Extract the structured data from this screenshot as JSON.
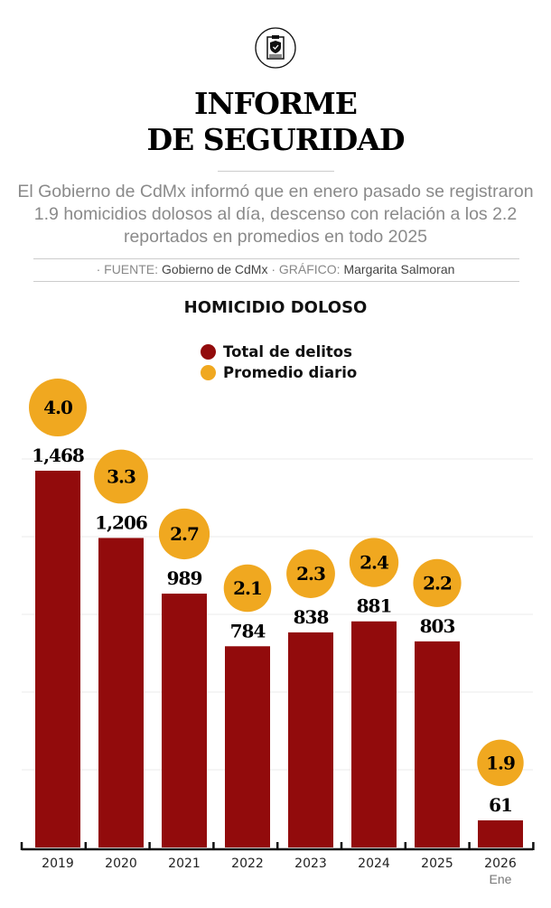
{
  "header": {
    "icon": "clipboard-shield-icon",
    "title_line1": "INFORME",
    "title_line2": "DE SEGURIDAD",
    "subtitle": "El Gobierno de CdMx informó que en enero pasado se registraron 1.9 homicidios dolosos al día, descenso con relación a los 2.2 reportados en promedios en todo 2025",
    "source_label": "· FUENTE:",
    "source": "Gobierno de CdMx",
    "graphic_label": "· GRÁFICO:",
    "graphic": "Margarita Salmoran"
  },
  "colors": {
    "bar": "#920b0c",
    "bubble": "#f0a820"
  },
  "chart_data": {
    "type": "bar",
    "title": "HOMICIDIO DOLOSO",
    "categories": [
      "2019",
      "2020",
      "2021",
      "2022",
      "2023",
      "2024",
      "2025",
      "2026"
    ],
    "category_sublabels": [
      "",
      "",
      "",
      "",
      "",
      "",
      "",
      "Ene"
    ],
    "series": [
      {
        "name": "Total de delitos",
        "values": [
          1468,
          1206,
          989,
          784,
          838,
          881,
          803,
          61
        ],
        "labels": [
          "1,468",
          "1,206",
          "989",
          "784",
          "838",
          "881",
          "803",
          "61"
        ]
      },
      {
        "name": "Promedio diario",
        "values": [
          4.0,
          3.3,
          2.7,
          2.1,
          2.3,
          2.4,
          2.2,
          1.9
        ],
        "labels": [
          "4.0",
          "3.3",
          "2.7",
          "2.1",
          "2.3",
          "2.4",
          "2.2",
          "1.9"
        ]
      }
    ],
    "legend": "top-center",
    "grid": true,
    "ylim": [
      0,
      1500
    ]
  }
}
